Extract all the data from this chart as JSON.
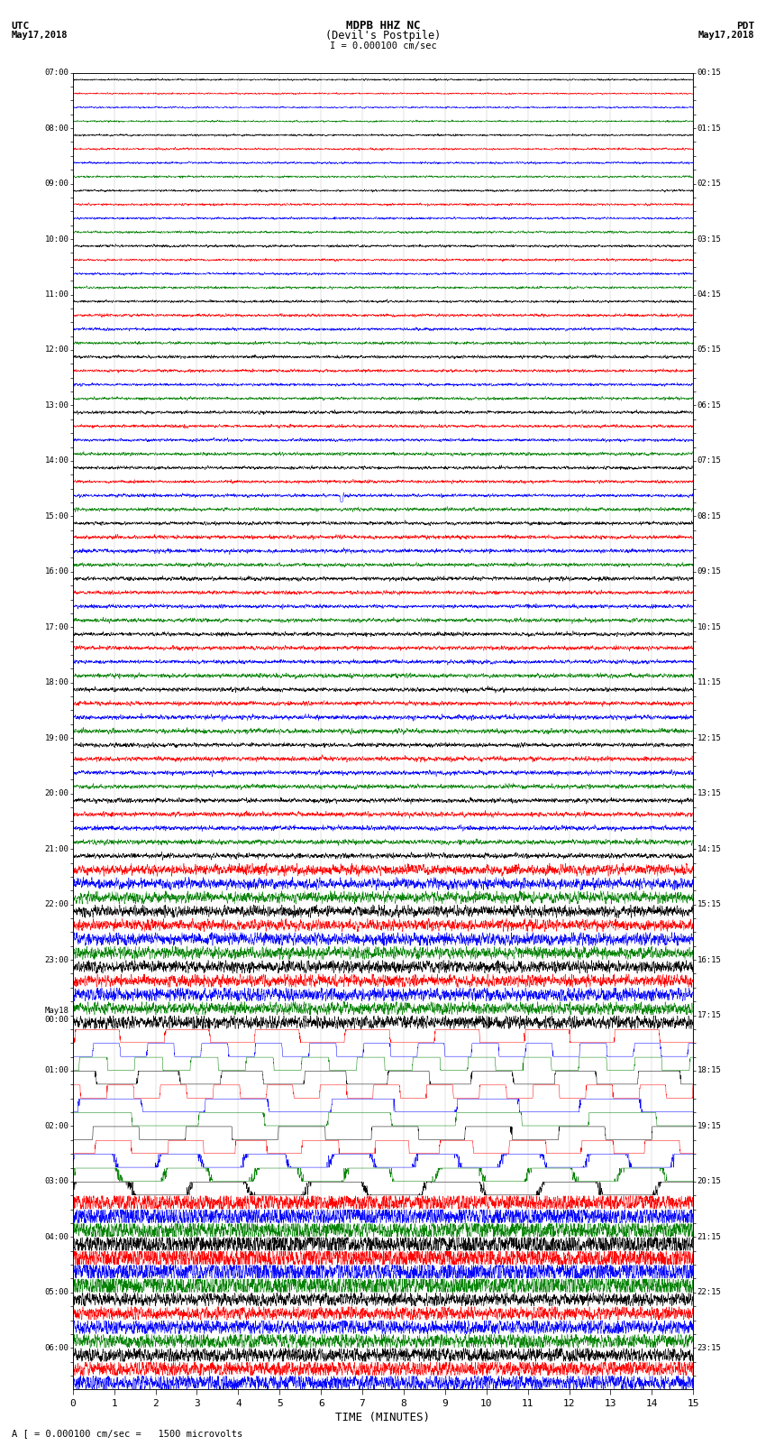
{
  "title_line1": "MDPB HHZ NC",
  "title_line2": "(Devil's Postpile)",
  "scale_label": "I = 0.000100 cm/sec",
  "utc_label": "UTC\nMay17,2018",
  "pdt_label": "PDT\nMay17,2018",
  "xlabel": "TIME (MINUTES)",
  "footnote": "A [ = 0.000100 cm/sec =   1500 microvolts",
  "left_times": [
    "07:00",
    "",
    "",
    "",
    "08:00",
    "",
    "",
    "",
    "09:00",
    "",
    "",
    "",
    "10:00",
    "",
    "",
    "",
    "11:00",
    "",
    "",
    "",
    "12:00",
    "",
    "",
    "",
    "13:00",
    "",
    "",
    "",
    "14:00",
    "",
    "",
    "",
    "15:00",
    "",
    "",
    "",
    "16:00",
    "",
    "",
    "",
    "17:00",
    "",
    "",
    "",
    "18:00",
    "",
    "",
    "",
    "19:00",
    "",
    "",
    "",
    "20:00",
    "",
    "",
    "",
    "21:00",
    "",
    "",
    "",
    "22:00",
    "",
    "",
    "",
    "23:00",
    "",
    "",
    "",
    "May18\n00:00",
    "",
    "",
    "",
    "01:00",
    "",
    "",
    "",
    "02:00",
    "",
    "",
    "",
    "03:00",
    "",
    "",
    "",
    "04:00",
    "",
    "",
    "",
    "05:00",
    "",
    "",
    "",
    "06:00",
    "",
    ""
  ],
  "right_times": [
    "00:15",
    "",
    "",
    "",
    "01:15",
    "",
    "",
    "",
    "02:15",
    "",
    "",
    "",
    "03:15",
    "",
    "",
    "",
    "04:15",
    "",
    "",
    "",
    "05:15",
    "",
    "",
    "",
    "06:15",
    "",
    "",
    "",
    "07:15",
    "",
    "",
    "",
    "08:15",
    "",
    "",
    "",
    "09:15",
    "",
    "",
    "",
    "10:15",
    "",
    "",
    "",
    "11:15",
    "",
    "",
    "",
    "12:15",
    "",
    "",
    "",
    "13:15",
    "",
    "",
    "",
    "14:15",
    "",
    "",
    "",
    "15:15",
    "",
    "",
    "",
    "16:15",
    "",
    "",
    "",
    "17:15",
    "",
    "",
    "",
    "18:15",
    "",
    "",
    "",
    "19:15",
    "",
    "",
    "",
    "20:15",
    "",
    "",
    "",
    "21:15",
    "",
    "",
    "",
    "22:15",
    "",
    "",
    "",
    "23:15",
    "",
    ""
  ],
  "colors": [
    "black",
    "red",
    "blue",
    "green"
  ],
  "n_rows": 95,
  "x_min": 0,
  "x_max": 15,
  "xticks": [
    0,
    1,
    2,
    3,
    4,
    5,
    6,
    7,
    8,
    9,
    10,
    11,
    12,
    13,
    14,
    15
  ],
  "bg_color": "white",
  "fig_width": 8.5,
  "fig_height": 16.13,
  "dpi": 100
}
